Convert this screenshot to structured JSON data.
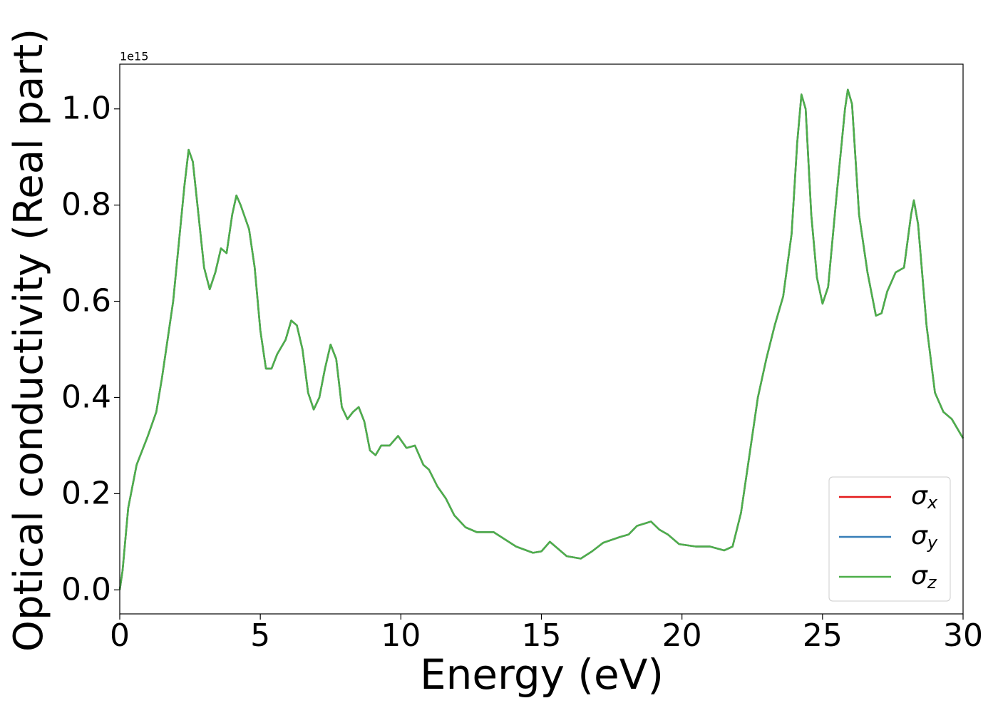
{
  "chart_data": {
    "type": "line",
    "xlabel": "Energy (eV)",
    "ylabel": "Optical conductivity (Real part)",
    "y_offset_label": "1e15",
    "x": [
      0,
      0.1,
      0.3,
      0.6,
      1.0,
      1.3,
      1.5,
      1.7,
      1.9,
      2.1,
      2.3,
      2.45,
      2.6,
      2.8,
      3.0,
      3.2,
      3.4,
      3.6,
      3.8,
      4.0,
      4.15,
      4.3,
      4.6,
      4.8,
      5.0,
      5.2,
      5.4,
      5.6,
      5.9,
      6.1,
      6.3,
      6.5,
      6.7,
      6.9,
      7.1,
      7.3,
      7.5,
      7.7,
      7.9,
      8.1,
      8.3,
      8.5,
      8.7,
      8.9,
      9.1,
      9.3,
      9.6,
      9.9,
      10.2,
      10.5,
      10.8,
      11.0,
      11.3,
      11.6,
      11.9,
      12.3,
      12.7,
      13.0,
      13.3,
      13.7,
      14.1,
      14.7,
      15.0,
      15.3,
      15.6,
      15.9,
      16.4,
      16.8,
      17.2,
      17.8,
      18.1,
      18.4,
      18.9,
      19.2,
      19.5,
      19.9,
      20.5,
      21.0,
      21.5,
      21.8,
      22.1,
      22.4,
      22.7,
      23.0,
      23.3,
      23.6,
      23.9,
      24.1,
      24.25,
      24.4,
      24.6,
      24.8,
      25.0,
      25.2,
      25.5,
      25.8,
      25.9,
      26.05,
      26.3,
      26.6,
      26.9,
      27.1,
      27.3,
      27.6,
      27.9,
      28.15,
      28.25,
      28.4,
      28.7,
      29.0,
      29.3,
      29.6,
      30
    ],
    "series": [
      {
        "name": "σx",
        "color": "#e41a1c",
        "values": [
          0.0,
          0.04,
          0.17,
          0.26,
          0.32,
          0.37,
          0.44,
          0.52,
          0.6,
          0.72,
          0.84,
          0.915,
          0.89,
          0.78,
          0.67,
          0.625,
          0.66,
          0.71,
          0.7,
          0.78,
          0.82,
          0.8,
          0.75,
          0.67,
          0.54,
          0.46,
          0.46,
          0.49,
          0.52,
          0.56,
          0.55,
          0.5,
          0.41,
          0.375,
          0.4,
          0.46,
          0.51,
          0.48,
          0.38,
          0.355,
          0.37,
          0.38,
          0.35,
          0.29,
          0.28,
          0.3,
          0.3,
          0.32,
          0.295,
          0.3,
          0.26,
          0.25,
          0.215,
          0.19,
          0.155,
          0.13,
          0.12,
          0.12,
          0.12,
          0.105,
          0.09,
          0.077,
          0.08,
          0.1,
          0.085,
          0.07,
          0.065,
          0.08,
          0.098,
          0.11,
          0.115,
          0.133,
          0.142,
          0.125,
          0.115,
          0.095,
          0.09,
          0.09,
          0.082,
          0.09,
          0.16,
          0.28,
          0.4,
          0.48,
          0.55,
          0.61,
          0.74,
          0.93,
          1.03,
          1.0,
          0.78,
          0.65,
          0.595,
          0.63,
          0.82,
          1.0,
          1.04,
          1.01,
          0.78,
          0.66,
          0.57,
          0.575,
          0.62,
          0.66,
          0.67,
          0.78,
          0.81,
          0.76,
          0.55,
          0.41,
          0.37,
          0.355,
          0.315
        ]
      },
      {
        "name": "σy",
        "color": "#377eb8",
        "values": [
          0.0,
          0.04,
          0.17,
          0.26,
          0.32,
          0.37,
          0.44,
          0.52,
          0.6,
          0.72,
          0.84,
          0.915,
          0.89,
          0.78,
          0.67,
          0.625,
          0.66,
          0.71,
          0.7,
          0.78,
          0.82,
          0.8,
          0.75,
          0.67,
          0.54,
          0.46,
          0.46,
          0.49,
          0.52,
          0.56,
          0.55,
          0.5,
          0.41,
          0.375,
          0.4,
          0.46,
          0.51,
          0.48,
          0.38,
          0.355,
          0.37,
          0.38,
          0.35,
          0.29,
          0.28,
          0.3,
          0.3,
          0.32,
          0.295,
          0.3,
          0.26,
          0.25,
          0.215,
          0.19,
          0.155,
          0.13,
          0.12,
          0.12,
          0.12,
          0.105,
          0.09,
          0.077,
          0.08,
          0.1,
          0.085,
          0.07,
          0.065,
          0.08,
          0.098,
          0.11,
          0.115,
          0.133,
          0.142,
          0.125,
          0.115,
          0.095,
          0.09,
          0.09,
          0.082,
          0.09,
          0.16,
          0.28,
          0.4,
          0.48,
          0.55,
          0.61,
          0.74,
          0.93,
          1.03,
          1.0,
          0.78,
          0.65,
          0.595,
          0.63,
          0.82,
          1.0,
          1.04,
          1.01,
          0.78,
          0.66,
          0.57,
          0.575,
          0.62,
          0.66,
          0.67,
          0.78,
          0.81,
          0.76,
          0.55,
          0.41,
          0.37,
          0.355,
          0.315
        ]
      },
      {
        "name": "σz",
        "color": "#4daf4a",
        "values": [
          0.0,
          0.04,
          0.17,
          0.26,
          0.32,
          0.37,
          0.44,
          0.52,
          0.6,
          0.72,
          0.84,
          0.915,
          0.89,
          0.78,
          0.67,
          0.625,
          0.66,
          0.71,
          0.7,
          0.78,
          0.82,
          0.8,
          0.75,
          0.67,
          0.54,
          0.46,
          0.46,
          0.49,
          0.52,
          0.56,
          0.55,
          0.5,
          0.41,
          0.375,
          0.4,
          0.46,
          0.51,
          0.48,
          0.38,
          0.355,
          0.37,
          0.38,
          0.35,
          0.29,
          0.28,
          0.3,
          0.3,
          0.32,
          0.295,
          0.3,
          0.26,
          0.25,
          0.215,
          0.19,
          0.155,
          0.13,
          0.12,
          0.12,
          0.12,
          0.105,
          0.09,
          0.077,
          0.08,
          0.1,
          0.085,
          0.07,
          0.065,
          0.08,
          0.098,
          0.11,
          0.115,
          0.133,
          0.142,
          0.125,
          0.115,
          0.095,
          0.09,
          0.09,
          0.082,
          0.09,
          0.16,
          0.28,
          0.4,
          0.48,
          0.55,
          0.61,
          0.74,
          0.93,
          1.03,
          1.0,
          0.78,
          0.65,
          0.595,
          0.63,
          0.82,
          1.0,
          1.04,
          1.01,
          0.78,
          0.66,
          0.57,
          0.575,
          0.62,
          0.66,
          0.67,
          0.78,
          0.81,
          0.76,
          0.55,
          0.41,
          0.37,
          0.355,
          0.315
        ]
      }
    ],
    "xlim": [
      0,
      30
    ],
    "xticks": [
      0,
      5,
      10,
      15,
      20,
      25,
      30
    ],
    "ylim": [
      -0.05,
      1.093
    ],
    "yticks": [
      {
        "value": 0,
        "label": "0.0"
      },
      0.2,
      0.4,
      0.6,
      0.8,
      {
        "value": 1,
        "label": "1.0"
      }
    ],
    "grid": false,
    "legend": "lower right"
  }
}
